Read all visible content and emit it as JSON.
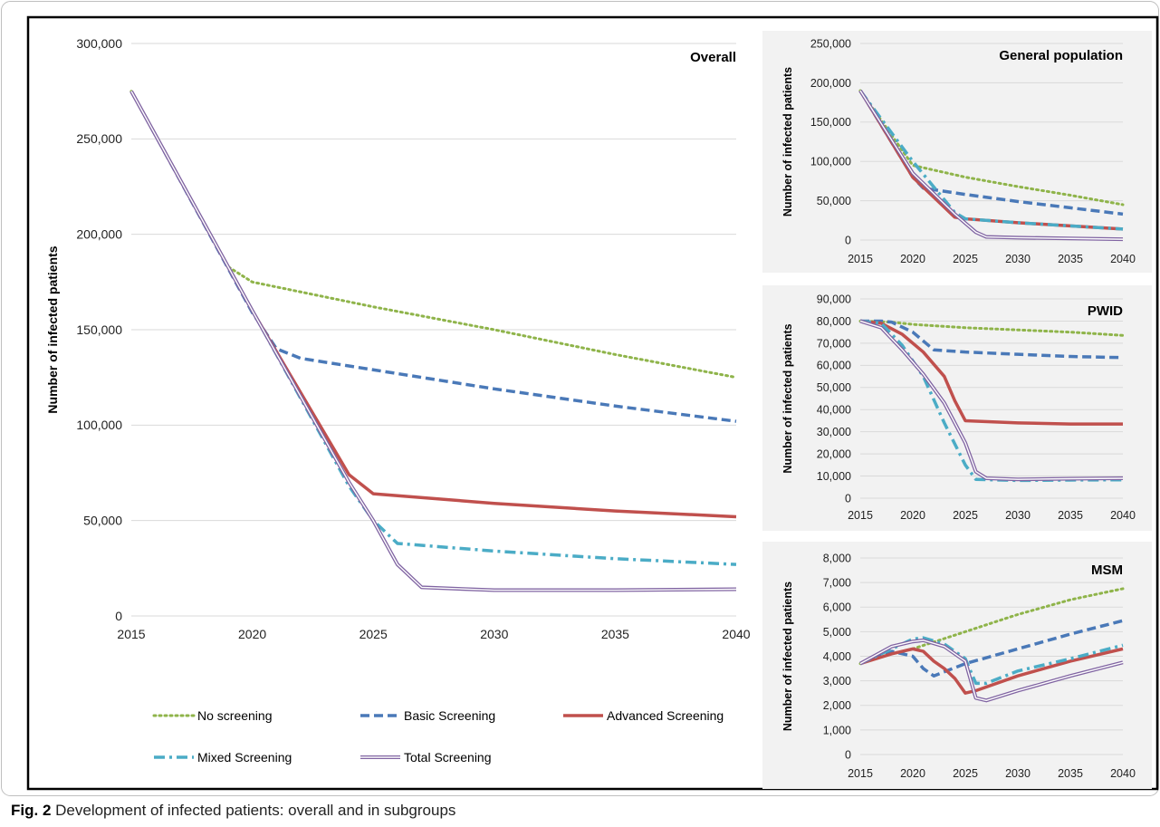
{
  "caption": {
    "label": "Fig. 2",
    "text": "Development of infected patients: overall and in subgroups"
  },
  "colors": {
    "no_screening": "#8fb44a",
    "basic": "#4a79b8",
    "advanced": "#c0504d",
    "mixed": "#4bacc6",
    "total": "#8064a2",
    "panel_bg": "#f2f2f2"
  },
  "legend": {
    "items": [
      {
        "key": "no_screening",
        "label": "No screening",
        "style": "dotted",
        "color": "#8fb44a"
      },
      {
        "key": "basic",
        "label": "Basic Screening",
        "style": "dashed",
        "color": "#4a79b8"
      },
      {
        "key": "advanced",
        "label": "Advanced Screening",
        "style": "solid",
        "color": "#c0504d"
      },
      {
        "key": "mixed",
        "label": "Mixed Screening",
        "style": "dashdot",
        "color": "#4bacc6"
      },
      {
        "key": "total",
        "label": "Total Screening",
        "style": "double",
        "color": "#8064a2"
      }
    ]
  },
  "chart_data": [
    {
      "type": "line",
      "title": "Overall",
      "ylabel": "Number of infected patients",
      "xlabel": "",
      "xlim": [
        2015,
        2040
      ],
      "ylim": [
        0,
        300000
      ],
      "yticks": [
        "0",
        "50,000",
        "100,000",
        "150,000",
        "200,000",
        "250,000",
        "300,000"
      ],
      "xticks": [
        "2015",
        "2020",
        "2025",
        "2030",
        "2035",
        "2040"
      ],
      "grid": true,
      "legend": "bottom",
      "series": [
        {
          "name": "No screening",
          "key": "no_screening",
          "points": [
            [
              2015,
              275000
            ],
            [
              2019,
              183000
            ],
            [
              2020,
              175000
            ],
            [
              2025,
              162000
            ],
            [
              2030,
              150000
            ],
            [
              2035,
              137000
            ],
            [
              2040,
              125000
            ]
          ]
        },
        {
          "name": "Basic Screening",
          "key": "basic",
          "points": [
            [
              2015,
              275000
            ],
            [
              2020,
              159000
            ],
            [
              2021,
              140000
            ],
            [
              2022,
              135000
            ],
            [
              2025,
              129000
            ],
            [
              2030,
              119000
            ],
            [
              2035,
              110000
            ],
            [
              2040,
              102000
            ]
          ]
        },
        {
          "name": "Advanced Screening",
          "key": "advanced",
          "points": [
            [
              2015,
              275000
            ],
            [
              2020,
              160000
            ],
            [
              2024,
              74000
            ],
            [
              2025,
              64000
            ],
            [
              2030,
              59000
            ],
            [
              2035,
              55000
            ],
            [
              2040,
              52000
            ]
          ]
        },
        {
          "name": "Mixed Screening",
          "key": "mixed",
          "points": [
            [
              2015,
              275000
            ],
            [
              2020,
              160000
            ],
            [
              2024,
              68000
            ],
            [
              2025,
              50000
            ],
            [
              2026,
              38000
            ],
            [
              2030,
              34000
            ],
            [
              2035,
              30000
            ],
            [
              2040,
              27000
            ]
          ]
        },
        {
          "name": "Total Screening",
          "key": "total",
          "points": [
            [
              2015,
              275000
            ],
            [
              2020,
              160000
            ],
            [
              2024,
              70000
            ],
            [
              2025,
              50000
            ],
            [
              2026,
              27000
            ],
            [
              2027,
              15000
            ],
            [
              2030,
              13500
            ],
            [
              2035,
              13500
            ],
            [
              2040,
              14000
            ]
          ]
        }
      ]
    },
    {
      "type": "line",
      "title": "General population",
      "ylabel": "Number of infected patients",
      "xlim": [
        2015,
        2040
      ],
      "ylim": [
        0,
        250000
      ],
      "yticks": [
        "0",
        "50,000",
        "100,000",
        "150,000",
        "200,000",
        "250,000"
      ],
      "xticks": [
        "2015",
        "2020",
        "2025",
        "2030",
        "2035",
        "2040"
      ],
      "grid": true,
      "series": [
        {
          "name": "No screening",
          "key": "no_screening",
          "points": [
            [
              2015,
              190000
            ],
            [
              2020,
              95000
            ],
            [
              2025,
              80000
            ],
            [
              2030,
              68000
            ],
            [
              2035,
              57000
            ],
            [
              2040,
              45000
            ]
          ]
        },
        {
          "name": "Basic Screening",
          "key": "basic",
          "points": [
            [
              2015,
              190000
            ],
            [
              2020,
              80000
            ],
            [
              2021,
              66000
            ],
            [
              2025,
              58000
            ],
            [
              2030,
              49000
            ],
            [
              2035,
              41000
            ],
            [
              2040,
              33000
            ]
          ]
        },
        {
          "name": "Advanced Screening",
          "key": "advanced",
          "points": [
            [
              2015,
              190000
            ],
            [
              2020,
              80000
            ],
            [
              2024,
              29000
            ],
            [
              2025,
              27000
            ],
            [
              2030,
              22000
            ],
            [
              2035,
              18000
            ],
            [
              2040,
              14000
            ]
          ]
        },
        {
          "name": "Mixed Screening",
          "key": "mixed",
          "points": [
            [
              2015,
              190000
            ],
            [
              2020,
              100000
            ],
            [
              2024,
              35000
            ],
            [
              2025,
              27000
            ],
            [
              2030,
              22000
            ],
            [
              2035,
              18000
            ],
            [
              2040,
              14000
            ]
          ]
        },
        {
          "name": "Total Screening",
          "key": "total",
          "points": [
            [
              2015,
              190000
            ],
            [
              2020,
              85000
            ],
            [
              2024,
              33000
            ],
            [
              2026,
              10000
            ],
            [
              2027,
              4000
            ],
            [
              2030,
              3000
            ],
            [
              2035,
              2000
            ],
            [
              2040,
              1000
            ]
          ]
        }
      ]
    },
    {
      "type": "line",
      "title": "PWID",
      "ylabel": "Number of infected patients",
      "xlim": [
        2015,
        2040
      ],
      "ylim": [
        0,
        90000
      ],
      "yticks": [
        "0",
        "10,000",
        "20,000",
        "30,000",
        "40,000",
        "50,000",
        "60,000",
        "70,000",
        "80,000",
        "90,000"
      ],
      "xticks": [
        "2015",
        "2020",
        "2025",
        "2030",
        "2035",
        "2040"
      ],
      "grid": true,
      "series": [
        {
          "name": "No screening",
          "key": "no_screening",
          "points": [
            [
              2015,
              80000
            ],
            [
              2018,
              79500
            ],
            [
              2020,
              78500
            ],
            [
              2025,
              77000
            ],
            [
              2030,
              76000
            ],
            [
              2035,
              75000
            ],
            [
              2040,
              73500
            ]
          ]
        },
        {
          "name": "Basic Screening",
          "key": "basic",
          "points": [
            [
              2015,
              80000
            ],
            [
              2017,
              80000
            ],
            [
              2018,
              79500
            ],
            [
              2020,
              75000
            ],
            [
              2021,
              71000
            ],
            [
              2022,
              67000
            ],
            [
              2025,
              66000
            ],
            [
              2030,
              65000
            ],
            [
              2035,
              64000
            ],
            [
              2040,
              63500
            ]
          ]
        },
        {
          "name": "Advanced Screening",
          "key": "advanced",
          "points": [
            [
              2015,
              80000
            ],
            [
              2017,
              79000
            ],
            [
              2019,
              74000
            ],
            [
              2021,
              66000
            ],
            [
              2023,
              55000
            ],
            [
              2024,
              44000
            ],
            [
              2025,
              35000
            ],
            [
              2030,
              34000
            ],
            [
              2035,
              33500
            ],
            [
              2040,
              33500
            ]
          ]
        },
        {
          "name": "Mixed Screening",
          "key": "mixed",
          "points": [
            [
              2015,
              80000
            ],
            [
              2017,
              79000
            ],
            [
              2019,
              69000
            ],
            [
              2021,
              55000
            ],
            [
              2023,
              34000
            ],
            [
              2025,
              15000
            ],
            [
              2026,
              8500
            ],
            [
              2030,
              8000
            ],
            [
              2035,
              8200
            ],
            [
              2040,
              8300
            ]
          ]
        },
        {
          "name": "Total Screening",
          "key": "total",
          "points": [
            [
              2015,
              80000
            ],
            [
              2017,
              77000
            ],
            [
              2019,
              67000
            ],
            [
              2021,
              56000
            ],
            [
              2023,
              43000
            ],
            [
              2025,
              25000
            ],
            [
              2026,
              12000
            ],
            [
              2027,
              9000
            ],
            [
              2030,
              8500
            ],
            [
              2035,
              8800
            ],
            [
              2040,
              9000
            ]
          ]
        }
      ]
    },
    {
      "type": "line",
      "title": "MSM",
      "ylabel": "Number of infected patients",
      "xlim": [
        2015,
        2040
      ],
      "ylim": [
        0,
        8000
      ],
      "yticks": [
        "0",
        "1,000",
        "2,000",
        "3,000",
        "4,000",
        "5,000",
        "6,000",
        "7,000",
        "8,000"
      ],
      "xticks": [
        "2015",
        "2020",
        "2025",
        "2030",
        "2035",
        "2040"
      ],
      "grid": true,
      "series": [
        {
          "name": "No screening",
          "key": "no_screening",
          "points": [
            [
              2015,
              3700
            ],
            [
              2018,
              4100
            ],
            [
              2020,
              4300
            ],
            [
              2025,
              5000
            ],
            [
              2030,
              5700
            ],
            [
              2035,
              6300
            ],
            [
              2040,
              6750
            ]
          ]
        },
        {
          "name": "Basic Screening",
          "key": "basic",
          "points": [
            [
              2015,
              3700
            ],
            [
              2018,
              4200
            ],
            [
              2020,
              4000
            ],
            [
              2021,
              3500
            ],
            [
              2022,
              3200
            ],
            [
              2025,
              3700
            ],
            [
              2030,
              4300
            ],
            [
              2035,
              4900
            ],
            [
              2040,
              5450
            ]
          ]
        },
        {
          "name": "Advanced Screening",
          "key": "advanced",
          "points": [
            [
              2015,
              3700
            ],
            [
              2018,
              4100
            ],
            [
              2020,
              4300
            ],
            [
              2021,
              4200
            ],
            [
              2022,
              3800
            ],
            [
              2023,
              3500
            ],
            [
              2024,
              3100
            ],
            [
              2025,
              2500
            ],
            [
              2026,
              2600
            ],
            [
              2030,
              3200
            ],
            [
              2035,
              3800
            ],
            [
              2040,
              4300
            ]
          ]
        },
        {
          "name": "Mixed Screening",
          "key": "mixed",
          "points": [
            [
              2015,
              3700
            ],
            [
              2018,
              4300
            ],
            [
              2020,
              4700
            ],
            [
              2021,
              4750
            ],
            [
              2023,
              4500
            ],
            [
              2025,
              3900
            ],
            [
              2026,
              2900
            ],
            [
              2027,
              2900
            ],
            [
              2030,
              3400
            ],
            [
              2035,
              3900
            ],
            [
              2040,
              4450
            ]
          ]
        },
        {
          "name": "Total Screening",
          "key": "total",
          "points": [
            [
              2015,
              3700
            ],
            [
              2018,
              4400
            ],
            [
              2020,
              4600
            ],
            [
              2021,
              4650
            ],
            [
              2023,
              4400
            ],
            [
              2025,
              3800
            ],
            [
              2026,
              2300
            ],
            [
              2027,
              2200
            ],
            [
              2030,
              2600
            ],
            [
              2035,
              3200
            ],
            [
              2040,
              3750
            ]
          ]
        }
      ]
    }
  ]
}
